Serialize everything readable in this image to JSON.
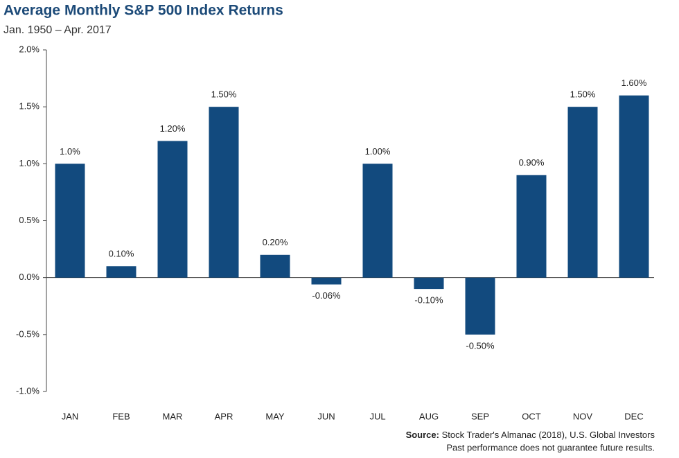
{
  "chart_data": {
    "type": "bar",
    "title": "Average Monthly S&P 500 Index Returns",
    "subtitle": "Jan. 1950 – Apr. 2017",
    "categories": [
      "JAN",
      "FEB",
      "MAR",
      "APR",
      "MAY",
      "JUN",
      "JUL",
      "AUG",
      "SEP",
      "OCT",
      "NOV",
      "DEC"
    ],
    "values": [
      1.0,
      0.1,
      1.2,
      1.5,
      0.2,
      -0.06,
      1.0,
      -0.1,
      -0.5,
      0.9,
      1.5,
      1.6
    ],
    "value_labels": [
      "1.0%",
      "0.10%",
      "1.20%",
      "1.50%",
      "0.20%",
      "-0.06%",
      "1.00%",
      "-0.10%",
      "-0.50%",
      "0.90%",
      "1.50%",
      "1.60%"
    ],
    "color": "#124a7e",
    "ylim": [
      -1.0,
      2.0
    ],
    "yticks": [
      {
        "value": -1.0,
        "label": "-1.0%"
      },
      {
        "value": -0.5,
        "label": "-0.5%"
      },
      {
        "value": 0,
        "label": "0.0%"
      },
      {
        "value": 0.5,
        "label": "0.5%"
      },
      {
        "value": 1.0,
        "label": "1.0%"
      },
      {
        "value": 1.5,
        "label": "1.5%"
      },
      {
        "value": 2.0,
        "label": "2.0%"
      }
    ],
    "grid": false,
    "source_label": "Source:",
    "source_text": "Stock Trader's Almanac (2018), U.S. Global Investors",
    "note": "Past performance does not guarantee future results."
  }
}
